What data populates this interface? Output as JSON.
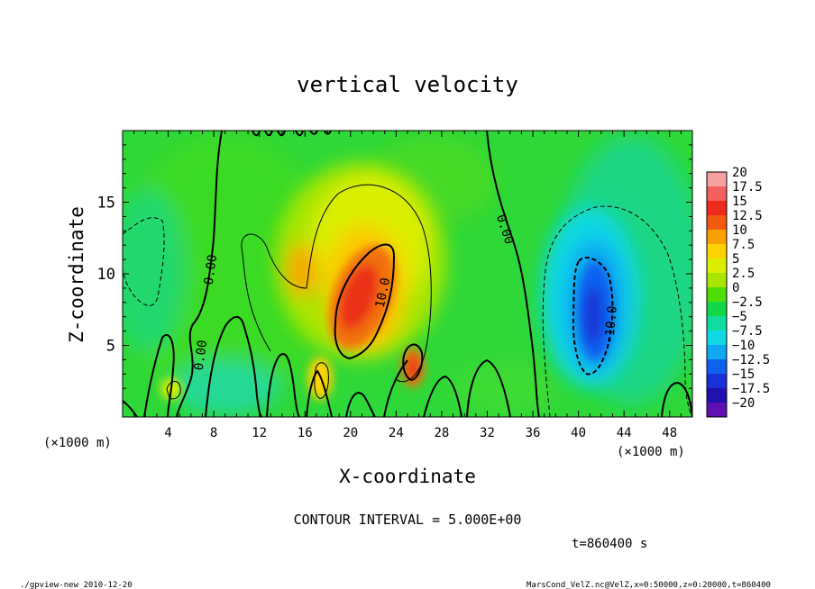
{
  "chart_data": {
    "type": "heatmap",
    "title": "vertical velocity",
    "xlabel": "X-coordinate",
    "ylabel": "Z-coordinate",
    "x_unit": "(×1000 m)",
    "x_unit_right": "(×1000 m)",
    "xlim": [
      0,
      50
    ],
    "ylim": [
      0,
      20
    ],
    "x_ticks": [
      4,
      8,
      12,
      16,
      20,
      24,
      28,
      32,
      36,
      40,
      44,
      48
    ],
    "y_ticks": [
      5,
      10,
      15
    ],
    "contour_interval_text": "CONTOUR INTERVAL = 5.000E+00",
    "time_text": "t=860400 s",
    "contour_labels": [
      "0.00",
      "0.00",
      "0.00",
      "10.0",
      "-10.0"
    ],
    "colorbar": {
      "levels": [
        "20",
        "17.5",
        "15",
        "12.5",
        "10",
        "7.5",
        "5",
        "2.5",
        "0",
        "−2.5",
        "−5",
        "−7.5",
        "−10",
        "−12.5",
        "−15",
        "−17.5",
        "−20"
      ],
      "colors": [
        "#f7a0a0",
        "#f36060",
        "#ef2c1c",
        "#f25a10",
        "#f7a000",
        "#fcd200",
        "#dcee00",
        "#a8e600",
        "#52dc08",
        "#10d848",
        "#10dca0",
        "#10d8e4",
        "#10a8f0",
        "#1060f0",
        "#1830d8",
        "#2010b0",
        "#6010b0"
      ]
    },
    "features": [
      {
        "type": "updraft",
        "x": 21.5,
        "z": 8,
        "max": 14
      },
      {
        "type": "updraft",
        "x": 25.5,
        "z": 3.5,
        "max": 9
      },
      {
        "type": "downdraft",
        "x": 40.5,
        "z": 7.5,
        "max": -16
      }
    ]
  },
  "footer": {
    "left": "./gpview-new   2010-12-20",
    "right": "MarsCond_VelZ.nc@VelZ,x=0:50000,z=0:20000,t=860400"
  }
}
